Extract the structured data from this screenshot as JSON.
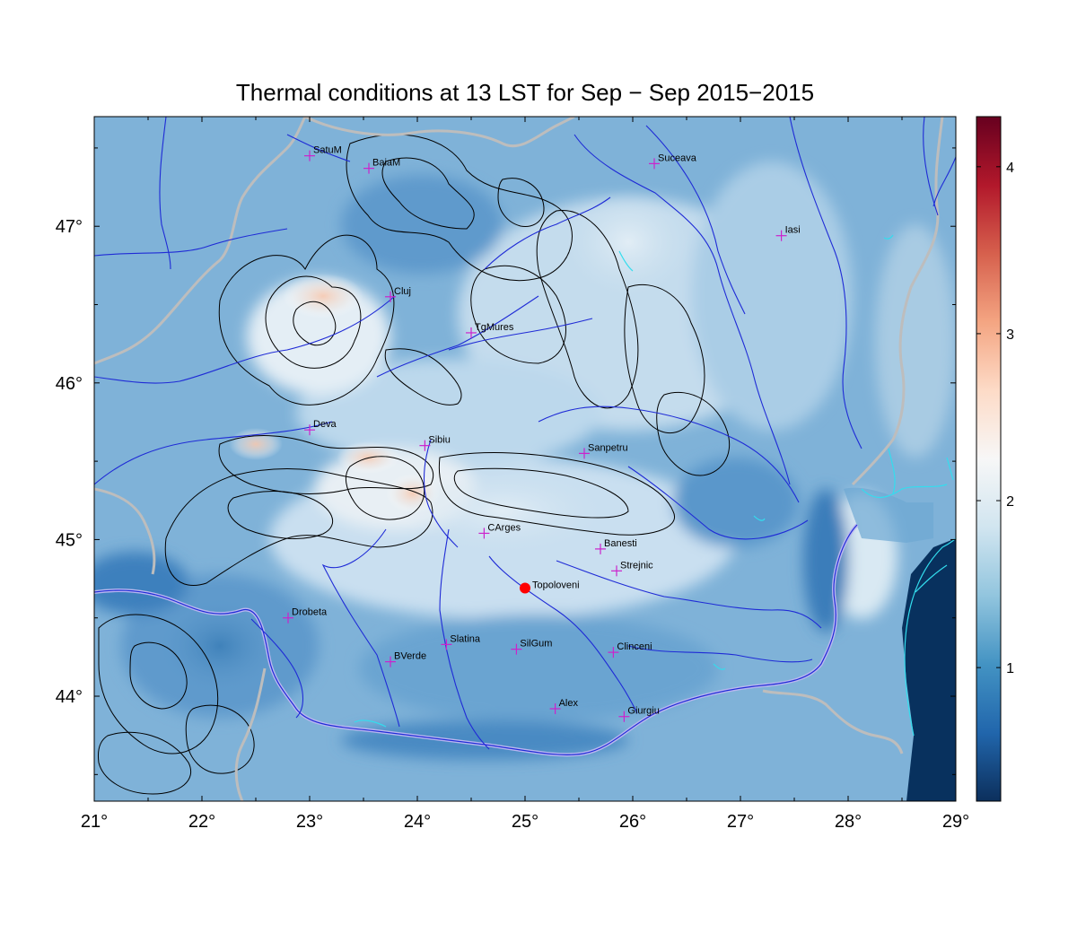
{
  "title": "Thermal conditions at 13 LST for Sep − Sep  2015−2015",
  "map": {
    "lon_range": [
      21,
      29
    ],
    "lat_range": [
      43.33,
      47.7
    ],
    "lon_ticks": [
      "21°",
      "22°",
      "23°",
      "24°",
      "25°",
      "26°",
      "27°",
      "28°",
      "29°"
    ],
    "lat_ticks": [
      "44°",
      "45°",
      "46°",
      "47°"
    ],
    "lon_tick_values": [
      21,
      22,
      23,
      24,
      25,
      26,
      27,
      28,
      29
    ],
    "lat_tick_values": [
      44,
      45,
      46,
      47
    ],
    "stations": [
      {
        "name": "SatuM",
        "lon": 23.0,
        "lat": 47.45
      },
      {
        "name": "BaiaM",
        "lon": 23.55,
        "lat": 47.37
      },
      {
        "name": "Suceava",
        "lon": 26.2,
        "lat": 47.4
      },
      {
        "name": "Iasi",
        "lon": 27.38,
        "lat": 46.94
      },
      {
        "name": "Cluj",
        "lon": 23.75,
        "lat": 46.55
      },
      {
        "name": "TgMures",
        "lon": 24.5,
        "lat": 46.32
      },
      {
        "name": "Deva",
        "lon": 23.0,
        "lat": 45.7
      },
      {
        "name": "Sibiu",
        "lon": 24.07,
        "lat": 45.6
      },
      {
        "name": "Sanpetru",
        "lon": 25.55,
        "lat": 45.55
      },
      {
        "name": "CArges",
        "lon": 24.62,
        "lat": 45.04
      },
      {
        "name": "Banesti",
        "lon": 25.7,
        "lat": 44.94
      },
      {
        "name": "Strejnic",
        "lon": 25.85,
        "lat": 44.8
      },
      {
        "name": "Drobeta",
        "lon": 22.8,
        "lat": 44.5
      },
      {
        "name": "Slatina",
        "lon": 24.27,
        "lat": 44.33
      },
      {
        "name": "SilGum",
        "lon": 24.92,
        "lat": 44.3
      },
      {
        "name": "Clinceni",
        "lon": 25.82,
        "lat": 44.28
      },
      {
        "name": "BVerde",
        "lon": 23.75,
        "lat": 44.22
      },
      {
        "name": "Alex",
        "lon": 25.28,
        "lat": 43.92
      },
      {
        "name": "Giurgiu",
        "lon": 25.92,
        "lat": 43.87
      }
    ],
    "highlight_station": {
      "name": "Topoloveni",
      "lon": 25.0,
      "lat": 44.69,
      "color": "#ff0000"
    },
    "station_marker_color": "#cc22cc"
  },
  "colorbar": {
    "range": [
      0.2,
      4.3
    ],
    "tick_labels": [
      "1",
      "2",
      "3",
      "4"
    ],
    "tick_values": [
      1,
      2,
      3,
      4
    ],
    "colors": [
      "#0c2f5c",
      "#2166ac",
      "#4393c3",
      "#92c5de",
      "#d1e5f0",
      "#f7f7f7",
      "#fddbc7",
      "#f4a582",
      "#d6604d",
      "#b2182b",
      "#67001f"
    ]
  },
  "colors": {
    "river": "#1f2bd6",
    "border": "#bdbdbd",
    "danube_outline": "#b9b6f0",
    "lakes": "#33ddee",
    "sea": "#08315e",
    "contour": "#000000"
  }
}
